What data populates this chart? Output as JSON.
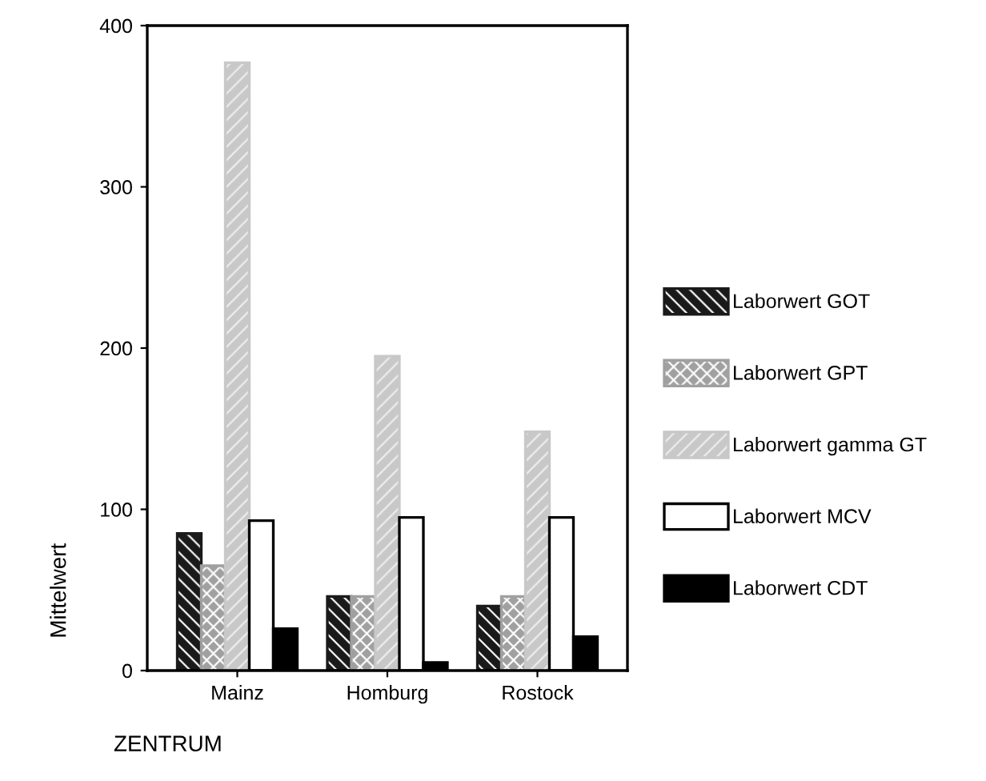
{
  "chart_data": {
    "type": "bar",
    "xlabel": "ZENTRUM",
    "ylabel": "Mittelwert",
    "categories": [
      "Mainz",
      "Homburg",
      "Rostock"
    ],
    "series": [
      {
        "name": "Laborwert GOT",
        "color": "#1a1a1a",
        "values": [
          85,
          46,
          40
        ]
      },
      {
        "name": "Laborwert GPT",
        "color": "#a0a0a0",
        "values": [
          65,
          46,
          46
        ]
      },
      {
        "name": "Laborwert gamma GT",
        "color": "#c8c8c8",
        "values": [
          377,
          195,
          148
        ]
      },
      {
        "name": "Laborwert MCV",
        "color": "#ffffff",
        "values": [
          93,
          95,
          95
        ]
      },
      {
        "name": "Laborwert CDT",
        "color": "#000000",
        "values": [
          26,
          5,
          21
        ]
      }
    ],
    "ylim": [
      0,
      400
    ],
    "yticks": [
      0,
      100,
      200,
      300,
      400
    ],
    "grid": false,
    "legend": "right"
  }
}
